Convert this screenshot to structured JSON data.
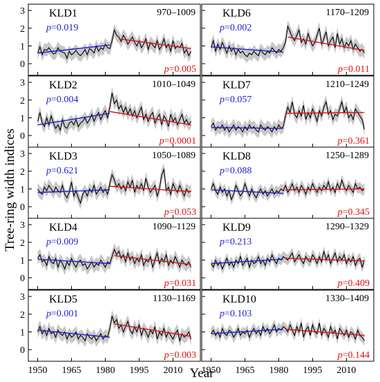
{
  "figure": {
    "ylabel": "Tree-ring width indices",
    "xlabel": "Year",
    "xticks": [
      1950,
      1965,
      1980,
      1995,
      2010
    ],
    "yticks": [
      0,
      1,
      2,
      3
    ],
    "colors": {
      "trend_early": "#1f1fd6",
      "trend_late": "#e01010",
      "series": "#000000",
      "band": "#c8c8c8"
    }
  },
  "chart_data": [
    {
      "type": "line",
      "site": "KLD1",
      "period": "970–1009",
      "p_early": "p=0.019",
      "p_late": "p=0.005",
      "xlim": [
        1948,
        2020
      ],
      "ylim": [
        -0.5,
        3.2
      ],
      "years": [
        1950,
        2018
      ],
      "trend_early": {
        "x": [
          1950,
          1982
        ],
        "y": [
          0.6,
          1.05
        ]
      },
      "trend_late": {
        "x": [
          1986,
          2018
        ],
        "y": [
          1.4,
          0.85
        ]
      },
      "series": [
        {
          "name": "",
          "values": [
            0.6,
            0.95,
            0.5,
            0.8,
            0.75,
            0.9,
            0.7,
            0.55,
            0.6,
            0.9,
            0.7,
            0.65,
            0.6,
            0.3,
            0.7,
            0.5,
            0.6,
            0.75,
            0.55,
            0.45,
            0.6,
            0.8,
            0.5,
            0.85,
            0.75,
            0.6,
            1.0,
            0.7,
            0.9,
            0.8,
            1.1,
            0.9,
            0.85,
            1.3,
            1.9,
            1.6,
            1.5,
            1.25,
            1.6,
            1.4,
            1.1,
            1.3,
            1.5,
            1.2,
            1.0,
            1.3,
            0.9,
            1.1,
            1.4,
            0.8,
            1.2,
            1.05,
            0.9,
            1.3,
            0.8,
            1.0,
            1.4,
            0.9,
            1.1,
            0.7,
            1.3,
            0.85,
            1.0,
            0.9,
            1.15,
            0.6,
            0.8,
            0.45,
            0.7
          ]
        }
      ],
      "band_halfwidth": 0.35
    },
    {
      "type": "line",
      "site": "KLD6",
      "period": "1170–1209",
      "p_early": "p=0.002",
      "p_late": "p=0.011",
      "xlim": [
        1948,
        2020
      ],
      "ylim": [
        -0.5,
        3.2
      ],
      "years": [
        1950,
        2018
      ],
      "trend_early": {
        "x": [
          1950,
          1982
        ],
        "y": [
          0.95,
          0.65
        ]
      },
      "trend_late": {
        "x": [
          1984,
          2018
        ],
        "y": [
          1.5,
          0.75
        ]
      },
      "series": [
        {
          "name": "",
          "values": [
            0.9,
            1.3,
            0.7,
            1.1,
            0.8,
            1.2,
            0.9,
            0.6,
            1.0,
            0.7,
            0.9,
            0.5,
            0.8,
            0.6,
            0.7,
            0.5,
            0.4,
            0.6,
            0.5,
            0.7,
            0.55,
            0.45,
            0.8,
            0.6,
            0.5,
            0.7,
            0.6,
            0.9,
            0.75,
            0.6,
            0.8,
            0.7,
            0.9,
            1.2,
            2.1,
            1.8,
            1.5,
            1.3,
            1.6,
            1.9,
            1.2,
            1.4,
            1.1,
            1.7,
            1.3,
            1.0,
            1.2,
            1.6,
            2.0,
            1.1,
            1.4,
            1.8,
            1.0,
            1.3,
            1.5,
            0.9,
            1.7,
            1.1,
            1.4,
            0.9,
            1.2,
            1.0,
            1.3,
            0.8,
            1.1,
            0.9,
            0.7,
            0.8,
            0.6
          ]
        }
      ],
      "band_halfwidth": 0.35
    },
    {
      "type": "line",
      "site": "KLD2",
      "period": "1010–1049",
      "p_early": "p=0.004",
      "p_late": "p=0.0001",
      "xlim": [
        1948,
        2020
      ],
      "ylim": [
        -0.5,
        3.2
      ],
      "years": [
        1950,
        2018
      ],
      "trend_early": {
        "x": [
          1950,
          1982
        ],
        "y": [
          0.6,
          1.25
        ]
      },
      "trend_late": {
        "x": [
          1982,
          2018
        ],
        "y": [
          1.35,
          0.6
        ]
      },
      "series": [
        {
          "name": "",
          "values": [
            0.8,
            1.3,
            0.7,
            0.5,
            1.0,
            0.6,
            1.1,
            0.7,
            0.4,
            0.6,
            0.3,
            0.9,
            0.5,
            0.4,
            0.7,
            0.8,
            0.6,
            0.9,
            0.5,
            0.7,
            0.8,
            1.0,
            0.7,
            0.9,
            1.2,
            0.8,
            1.1,
            1.3,
            0.9,
            1.2,
            1.4,
            1.0,
            1.6,
            2.4,
            1.8,
            2.0,
            1.5,
            1.7,
            1.3,
            1.6,
            1.2,
            1.5,
            1.1,
            1.4,
            1.0,
            1.3,
            1.6,
            0.9,
            1.2,
            0.8,
            1.1,
            1.3,
            0.7,
            1.0,
            1.2,
            0.6,
            1.1,
            0.9,
            0.5,
            1.2,
            0.8,
            1.0,
            0.6,
            0.9,
            1.2,
            0.7,
            0.9,
            0.6,
            0.8
          ]
        }
      ],
      "band_halfwidth": 0.35
    },
    {
      "type": "line",
      "site": "KLD7",
      "period": "1210–1249",
      "p_early": "p=0.057",
      "p_late": "p=0.361",
      "xlim": [
        1948,
        2020
      ],
      "ylim": [
        -0.5,
        3.2
      ],
      "years": [
        1950,
        2018
      ],
      "trend_early": {
        "x": [
          1950,
          1982
        ],
        "y": [
          0.45,
          0.4
        ]
      },
      "trend_late": {
        "x": [
          1983,
          2018
        ],
        "y": [
          1.25,
          1.3
        ]
      },
      "series": [
        {
          "name": "",
          "values": [
            0.5,
            0.7,
            0.3,
            0.5,
            0.4,
            0.6,
            0.3,
            0.5,
            0.2,
            0.4,
            0.6,
            0.3,
            0.5,
            0.4,
            0.2,
            0.5,
            0.3,
            0.6,
            0.4,
            0.5,
            0.3,
            0.2,
            0.6,
            0.4,
            0.3,
            0.5,
            0.4,
            0.2,
            0.5,
            0.3,
            0.6,
            0.4,
            0.5,
            1.1,
            1.6,
            1.3,
            1.9,
            1.2,
            1.0,
            1.4,
            1.1,
            1.7,
            0.9,
            1.3,
            1.0,
            1.5,
            1.2,
            0.8,
            1.4,
            1.1,
            1.6,
            1.9,
            1.2,
            1.4,
            0.9,
            1.2,
            1.1,
            1.5,
            1.9,
            1.3,
            1.6,
            1.0,
            1.2,
            0.9,
            1.5,
            1.3,
            1.1,
            0.9,
            0.35
          ]
        }
      ],
      "band_halfwidth": 0.35
    },
    {
      "type": "line",
      "site": "KLD3",
      "period": "1050–1089",
      "p_early": "p=0.621",
      "p_late": "p=0.053",
      "xlim": [
        1948,
        2020
      ],
      "ylim": [
        -0.5,
        3.2
      ],
      "years": [
        1950,
        2018
      ],
      "trend_early": {
        "x": [
          1950,
          1982
        ],
        "y": [
          0.8,
          0.95
        ]
      },
      "trend_late": {
        "x": [
          1982,
          2018
        ],
        "y": [
          1.15,
          0.85
        ]
      },
      "series": [
        {
          "name": "",
          "values": [
            1.0,
            0.8,
            0.7,
            1.1,
            0.9,
            1.2,
            1.0,
            0.8,
            1.1,
            0.9,
            0.8,
            1.2,
            0.7,
            0.5,
            0.8,
            1.4,
            0.6,
            0.9,
            0.5,
            0.2,
            0.7,
            0.9,
            0.6,
            1.0,
            0.8,
            1.2,
            0.7,
            0.9,
            1.1,
            0.8,
            1.0,
            0.7,
            1.3,
            1.8,
            1.5,
            1.1,
            1.3,
            1.0,
            1.2,
            0.9,
            1.4,
            1.1,
            1.5,
            0.8,
            1.2,
            1.0,
            1.3,
            0.9,
            1.6,
            1.1,
            0.8,
            1.0,
            1.2,
            0.6,
            1.0,
            1.8,
            2.1,
            0.9,
            1.1,
            0.7,
            1.3,
            1.0,
            0.8,
            1.2,
            0.9,
            0.6,
            1.0,
            0.8,
            0.9
          ]
        }
      ],
      "band_halfwidth": 0.35
    },
    {
      "type": "line",
      "site": "KLD8",
      "period": "1250–1289",
      "p_early": "p=0.088",
      "p_late": "p=0.345",
      "xlim": [
        1948,
        2020
      ],
      "ylim": [
        -0.5,
        3.2
      ],
      "years": [
        1950,
        2018
      ],
      "trend_early": {
        "x": [
          1950,
          1982
        ],
        "y": [
          0.95,
          0.75
        ]
      },
      "trend_late": {
        "x": [
          1983,
          2018
        ],
        "y": [
          0.95,
          1.0
        ]
      },
      "series": [
        {
          "name": "",
          "values": [
            1.0,
            1.3,
            0.9,
            0.7,
            1.1,
            0.8,
            1.0,
            0.6,
            0.9,
            0.4,
            0.7,
            1.2,
            0.9,
            0.6,
            0.8,
            1.3,
            0.9,
            0.6,
            1.0,
            0.7,
            0.5,
            0.8,
            1.0,
            0.7,
            0.9,
            0.6,
            0.8,
            1.0,
            0.7,
            0.9,
            0.8,
            1.0,
            0.9,
            1.2,
            0.8,
            1.0,
            1.3,
            0.9,
            1.1,
            0.8,
            1.2,
            1.0,
            0.7,
            1.1,
            0.9,
            1.3,
            1.0,
            0.8,
            1.1,
            0.9,
            1.2,
            1.0,
            1.4,
            0.9,
            1.1,
            0.8,
            1.3,
            1.0,
            1.5,
            1.1,
            0.9,
            1.2,
            1.0,
            0.8,
            1.3,
            1.0,
            1.1,
            0.9,
            1.0
          ]
        }
      ],
      "band_halfwidth": 0.3
    },
    {
      "type": "line",
      "site": "KLD4",
      "period": "1090–1129",
      "p_early": "p=0.009",
      "p_late": "p=0.031",
      "xlim": [
        1948,
        2020
      ],
      "ylim": [
        -0.5,
        3.2
      ],
      "years": [
        1950,
        2018
      ],
      "trend_early": {
        "x": [
          1950,
          1982
        ],
        "y": [
          1.05,
          0.8
        ]
      },
      "trend_late": {
        "x": [
          1984,
          2018
        ],
        "y": [
          1.25,
          0.75
        ]
      },
      "series": [
        {
          "name": "",
          "values": [
            1.1,
            1.3,
            0.9,
            1.0,
            0.7,
            1.2,
            0.9,
            0.8,
            1.1,
            0.6,
            1.0,
            0.8,
            0.5,
            0.9,
            0.7,
            1.1,
            0.8,
            0.6,
            0.9,
            1.0,
            0.7,
            0.8,
            0.5,
            0.7,
            0.9,
            0.6,
            0.8,
            0.7,
            1.0,
            0.8,
            0.6,
            0.9,
            0.8,
            1.2,
            1.6,
            1.3,
            1.5,
            1.1,
            1.3,
            0.9,
            1.4,
            1.0,
            1.2,
            0.8,
            1.1,
            0.9,
            1.3,
            0.7,
            1.0,
            0.9,
            1.2,
            0.6,
            1.0,
            1.4,
            0.8,
            1.1,
            0.9,
            1.3,
            0.7,
            1.0,
            0.8,
            1.2,
            0.9,
            0.6,
            1.0,
            0.8,
            0.7,
            0.9,
            0.6
          ]
        }
      ],
      "band_halfwidth": 0.35
    },
    {
      "type": "line",
      "site": "KLD9",
      "period": "1290–1329",
      "p_early": "p=0.213",
      "p_late": "p=0.409",
      "xlim": [
        1948,
        2020
      ],
      "ylim": [
        -0.5,
        3.2
      ],
      "years": [
        1950,
        2018
      ],
      "trend_early": {
        "x": [
          1950,
          1982
        ],
        "y": [
          0.8,
          1.05
        ]
      },
      "trend_late": {
        "x": [
          1983,
          2018
        ],
        "y": [
          1.1,
          0.95
        ]
      },
      "series": [
        {
          "name": "",
          "values": [
            0.8,
            0.6,
            1.0,
            0.7,
            0.9,
            0.5,
            0.8,
            1.1,
            0.7,
            0.9,
            0.6,
            1.0,
            0.8,
            1.2,
            0.7,
            0.9,
            1.1,
            0.6,
            1.0,
            0.8,
            0.9,
            1.2,
            0.8,
            1.0,
            0.7,
            1.1,
            0.9,
            1.3,
            1.0,
            0.8,
            1.1,
            1.0,
            1.2,
            1.1,
            1.0,
            1.2,
            1.4,
            0.9,
            1.1,
            1.3,
            1.0,
            0.8,
            1.2,
            1.0,
            0.9,
            1.3,
            1.1,
            0.8,
            1.2,
            0.9,
            1.5,
            1.0,
            1.3,
            0.8,
            1.1,
            1.4,
            0.9,
            1.2,
            1.0,
            1.3,
            0.8,
            1.1,
            0.9,
            1.2,
            0.7,
            1.0,
            1.1,
            0.6,
            1.0
          ]
        }
      ],
      "band_halfwidth": 0.3
    },
    {
      "type": "line",
      "site": "KLD5",
      "period": "1130–1169",
      "p_early": "p=0.001",
      "p_late": "p=0.003",
      "xlim": [
        1948,
        2020
      ],
      "ylim": [
        -0.5,
        3.2
      ],
      "years": [
        1950,
        2018
      ],
      "trend_early": {
        "x": [
          1950,
          1982
        ],
        "y": [
          1.1,
          0.7
        ]
      },
      "trend_late": {
        "x": [
          1984,
          2018
        ],
        "y": [
          1.45,
          0.75
        ]
      },
      "series": [
        {
          "name": "",
          "values": [
            1.0,
            1.3,
            0.9,
            1.1,
            0.8,
            1.2,
            0.9,
            1.0,
            0.7,
            1.1,
            0.9,
            0.8,
            1.0,
            0.6,
            0.9,
            0.7,
            0.8,
            1.0,
            0.6,
            0.8,
            0.7,
            0.5,
            0.9,
            0.7,
            0.6,
            0.8,
            0.5,
            0.7,
            0.9,
            0.6,
            0.8,
            0.7,
            1.2,
            1.9,
            1.5,
            1.7,
            1.2,
            1.4,
            1.0,
            1.3,
            1.6,
            1.1,
            0.9,
            1.3,
            1.0,
            1.4,
            0.8,
            1.2,
            1.0,
            0.7,
            1.1,
            0.9,
            1.3,
            0.6,
            1.0,
            0.8,
            1.2,
            0.7,
            1.0,
            0.8,
            0.6,
            0.9,
            1.1,
            0.5,
            0.9,
            0.7,
            0.8,
            1.0,
            0.6
          ]
        }
      ],
      "band_halfwidth": 0.35
    },
    {
      "type": "line",
      "site": "KLD10",
      "period": "1330–1409",
      "p_early": "p=0.103",
      "p_late": "p=0.144",
      "xlim": [
        1948,
        2020
      ],
      "ylim": [
        -0.5,
        3.2
      ],
      "years": [
        1950,
        2018
      ],
      "trend_early": {
        "x": [
          1950,
          1982
        ],
        "y": [
          0.9,
          1.15
        ]
      },
      "trend_late": {
        "x": [
          1983,
          2018
        ],
        "y": [
          1.15,
          0.8
        ]
      },
      "series": [
        {
          "name": "",
          "values": [
            0.9,
            1.1,
            0.8,
            1.0,
            0.7,
            1.2,
            0.9,
            0.8,
            1.1,
            1.0,
            0.7,
            0.9,
            1.2,
            0.8,
            1.0,
            0.9,
            1.1,
            0.7,
            1.0,
            1.2,
            0.9,
            1.1,
            0.8,
            1.3,
            1.0,
            1.2,
            0.9,
            1.1,
            1.4,
            1.0,
            1.2,
            1.1,
            1.3,
            1.2,
            1.0,
            1.4,
            1.1,
            0.8,
            1.3,
            1.0,
            1.5,
            0.7,
            1.1,
            1.3,
            0.8,
            1.4,
            1.0,
            0.9,
            1.5,
            0.8,
            1.2,
            1.0,
            0.7,
            1.3,
            0.9,
            1.1,
            0.6,
            1.2,
            1.0,
            0.8,
            1.1,
            0.7,
            1.0,
            0.9,
            0.6,
            1.1,
            0.8,
            0.7,
            0.5
          ]
        }
      ],
      "band_halfwidth": 0.3
    }
  ]
}
